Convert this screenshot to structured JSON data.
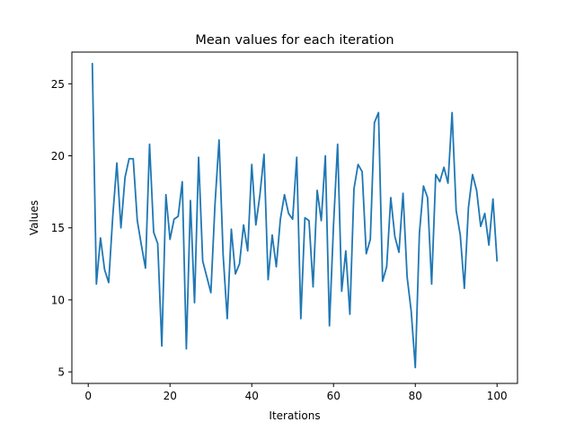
{
  "chart_data": {
    "type": "line",
    "title": "Mean values for each iteration",
    "xlabel": "Iterations",
    "ylabel": "Values",
    "xlim": [
      -4,
      105
    ],
    "ylim": [
      4.2,
      27.2
    ],
    "xticks": [
      0,
      20,
      40,
      60,
      80,
      100
    ],
    "yticks": [
      5,
      10,
      15,
      20,
      25
    ],
    "grid": false,
    "legend": "none",
    "colors": {
      "line": "#1f77b4"
    },
    "series": [
      {
        "x": [
          1,
          2,
          3,
          4,
          5,
          6,
          7,
          8,
          9,
          10,
          11,
          12,
          13,
          14,
          15,
          16,
          17,
          18,
          19,
          20,
          21,
          22,
          23,
          24,
          25,
          26,
          27,
          28,
          29,
          30,
          31,
          32,
          33,
          34,
          35,
          36,
          37,
          38,
          39,
          40,
          41,
          42,
          43,
          44,
          45,
          46,
          47,
          48,
          49,
          50,
          51,
          52,
          53,
          54,
          55,
          56,
          57,
          58,
          59,
          60,
          61,
          62,
          63,
          64,
          65,
          66,
          67,
          68,
          69,
          70,
          71,
          72,
          73,
          74,
          75,
          76,
          77,
          78,
          79,
          80,
          81,
          82,
          83,
          84,
          85,
          86,
          87,
          88,
          89,
          90,
          91,
          92,
          93,
          94,
          95,
          96,
          97,
          98,
          99,
          100
        ],
        "values": [
          26.4,
          11.1,
          14.3,
          12.1,
          11.2,
          15.8,
          19.5,
          15.0,
          18.5,
          19.8,
          19.8,
          15.5,
          13.8,
          12.2,
          20.8,
          14.7,
          13.9,
          6.8,
          17.3,
          14.2,
          15.6,
          15.8,
          18.2,
          6.6,
          16.9,
          9.8,
          19.9,
          12.7,
          11.6,
          10.5,
          16.6,
          21.1,
          13.1,
          8.7,
          14.9,
          11.8,
          12.5,
          15.2,
          13.4,
          19.4,
          15.2,
          17.3,
          20.1,
          11.4,
          14.5,
          12.3,
          15.6,
          17.3,
          16.0,
          15.6,
          19.9,
          8.7,
          15.7,
          15.5,
          10.9,
          17.6,
          15.5,
          20.0,
          8.2,
          15.2,
          20.8,
          10.6,
          13.4,
          9.0,
          17.7,
          19.4,
          18.9,
          13.2,
          14.2,
          22.3,
          23.0,
          11.3,
          12.3,
          17.1,
          14.4,
          13.3,
          17.4,
          11.6,
          9.2,
          5.3,
          14.6,
          17.9,
          17.1,
          11.1,
          18.7,
          18.2,
          19.2,
          18.1,
          23.0,
          16.2,
          14.5,
          10.8,
          16.4,
          18.7,
          17.6,
          15.1,
          16.0,
          13.8,
          17.0,
          12.7
        ]
      }
    ]
  }
}
